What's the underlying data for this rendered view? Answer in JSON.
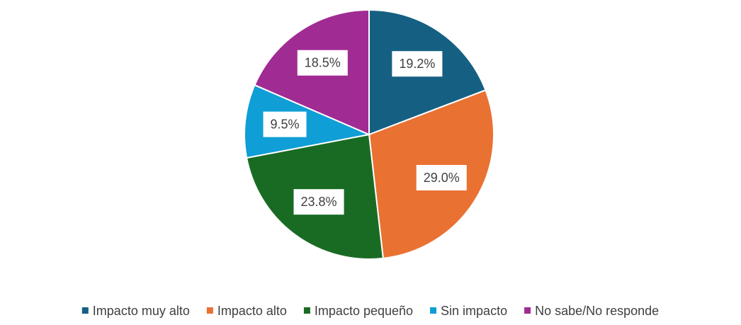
{
  "chart_data": {
    "type": "pie",
    "categories": [
      "Impacto muy alto",
      "Impacto alto",
      "Impacto pequeño",
      "Sin impacto",
      "No sabe/No responde"
    ],
    "values": [
      19.2,
      29.0,
      23.8,
      9.5,
      18.5
    ],
    "value_labels": [
      "19.2%",
      "29.0%",
      "23.8%",
      "9.5%",
      "18.5%"
    ],
    "colors": [
      "#156082",
      "#e97132",
      "#196b24",
      "#0f9ed5",
      "#a02b93"
    ],
    "legend": "bottom"
  }
}
